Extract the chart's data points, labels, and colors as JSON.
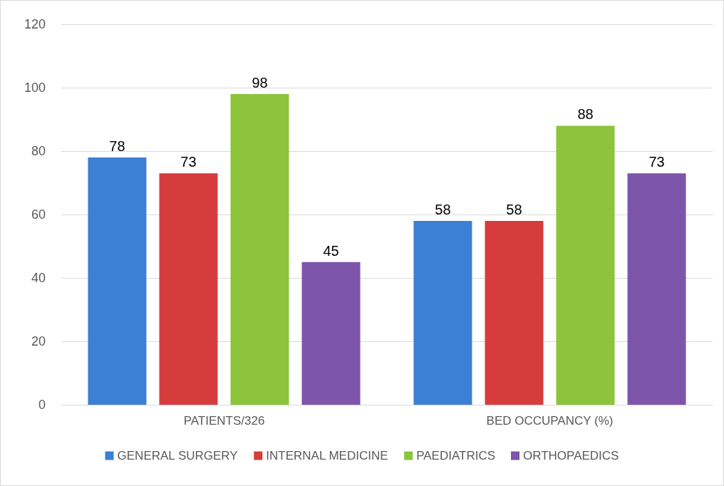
{
  "chart_data": {
    "type": "bar",
    "categories": [
      "PATIENTS/326",
      "BED OCCUPANCY (%)"
    ],
    "series": [
      {
        "name": "GENERAL SURGERY",
        "color": "#3d7fd3",
        "values": [
          78,
          58
        ]
      },
      {
        "name": "INTERNAL MEDICINE",
        "color": "#d63c3c",
        "values": [
          73,
          58
        ]
      },
      {
        "name": "PAEDIATRICS",
        "color": "#8cc43c",
        "values": [
          98,
          88
        ]
      },
      {
        "name": "ORTHOPAEDICS",
        "color": "#7d55aa",
        "values": [
          45,
          73
        ]
      }
    ],
    "ylim": [
      0,
      120
    ],
    "yticks": [
      0,
      20,
      40,
      60,
      80,
      100,
      120
    ],
    "grid": "y",
    "legend": "bottom",
    "data_labels": true
  }
}
